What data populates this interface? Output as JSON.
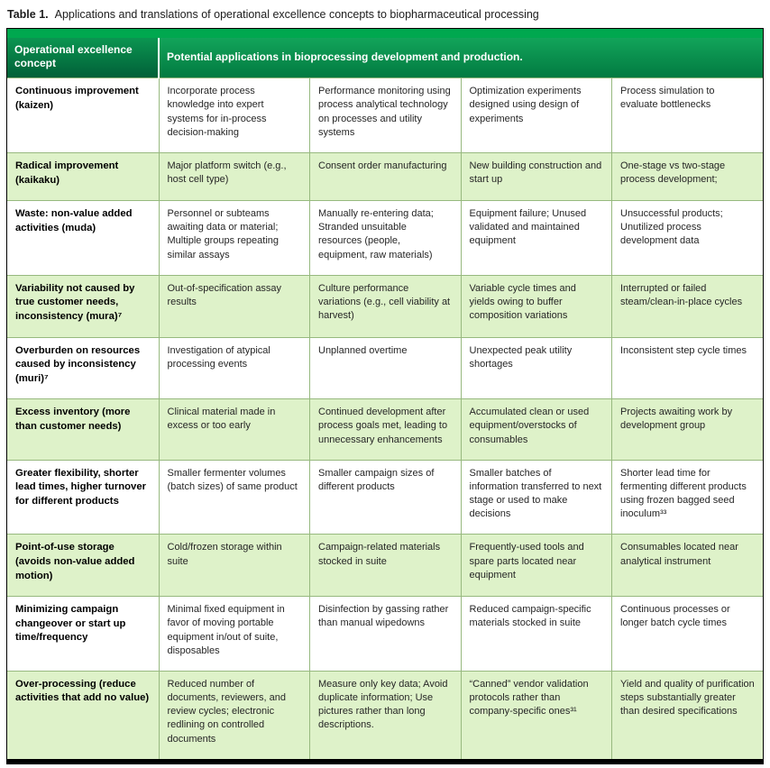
{
  "caption": {
    "label": "Table 1.",
    "text": "Applications and translations of operational excellence concepts to biopharmaceutical processing"
  },
  "header": {
    "concept": "Operational excellence concept",
    "applications": "Potential applications in bioprocessing development and production."
  },
  "rows": [
    {
      "concept": "Continuous improvement (kaizen)",
      "cells": [
        "Incorporate process knowledge into expert systems for in-process decision-making",
        "Performance monitoring using process analytical technology on processes and utility systems",
        "Optimization experiments designed using design of experiments",
        "Process simulation to evaluate bottlenecks"
      ]
    },
    {
      "concept": "Radical improvement (kaikaku)",
      "cells": [
        "Major platform switch (e.g., host cell type)",
        "Consent order manufacturing",
        "New building construction and start up",
        "One-stage vs two-stage process development;"
      ]
    },
    {
      "concept": "Waste: non-value added activities (muda)",
      "cells": [
        "Personnel or subteams awaiting data or material; Multiple groups repeating similar assays",
        "Manually re-entering data; Stranded unsuitable resources (people, equipment, raw materials)",
        "Equipment failure; Unused validated and maintained equipment",
        "Unsuccessful products; Unutilized process development data"
      ]
    },
    {
      "concept": "Variability not caused by true customer needs, inconsistency (mura)⁷",
      "cells": [
        "Out-of-specification assay results",
        "Culture performance variations (e.g., cell viability at harvest)",
        "Variable cycle times and yields owing to buffer composition variations",
        "Interrupted or failed steam/clean-in-place cycles"
      ]
    },
    {
      "concept": "Overburden on resources caused by inconsistency (muri)⁷",
      "cells": [
        "Investigation of atypical processing events",
        "Unplanned overtime",
        "Unexpected peak utility shortages",
        "Inconsistent step cycle times"
      ]
    },
    {
      "concept": "Excess inventory (more than customer needs)",
      "cells": [
        "Clinical material made in excess or too early",
        "Continued development after process goals met, leading to unnecessary enhancements",
        "Accumulated clean or used equipment/overstocks of consumables",
        "Projects awaiting work by development group"
      ]
    },
    {
      "concept": "Greater flexibility, shorter lead times, higher turnover for different products",
      "cells": [
        "Smaller fermenter volumes (batch sizes) of same product",
        "Smaller campaign sizes of different products",
        "Smaller batches of information transferred to next stage or used to make decisions",
        "Shorter lead time for fermenting different products using frozen bagged seed inoculum³³"
      ]
    },
    {
      "concept": "Point-of-use storage (avoids non-value added motion)",
      "cells": [
        "Cold/frozen storage within suite",
        "Campaign-related materials stocked in suite",
        "Frequently-used tools and spare parts located near equipment",
        "Consumables located near analytical instrument"
      ]
    },
    {
      "concept": "Minimizing campaign changeover or start up time/frequency",
      "cells": [
        "Minimal fixed equipment in favor of moving portable equipment in/out of suite, disposables",
        "Disinfection by gassing rather than manual wipedowns",
        "Reduced campaign-specific materials stocked in suite",
        "Continuous processes or longer batch cycle times"
      ]
    },
    {
      "concept": "Over-processing (reduce activities that add no value)",
      "cells": [
        "Reduced number of documents, reviewers, and review cycles; electronic redlining on controlled documents",
        "Measure only key data; Avoid duplicate information; Use pictures rather than long descriptions.",
        "“Canned” vendor validation protocols rather than company-specific ones³¹",
        "Yield and quality of purification steps substantially greater than desired specifications"
      ]
    }
  ],
  "colors": {
    "top_strip": "#00a84f",
    "header_gradient_top": "#12a45a",
    "header_gradient_bottom": "#027a41",
    "alt_row": "#def2c9",
    "cell_border": "#97b97f"
  }
}
